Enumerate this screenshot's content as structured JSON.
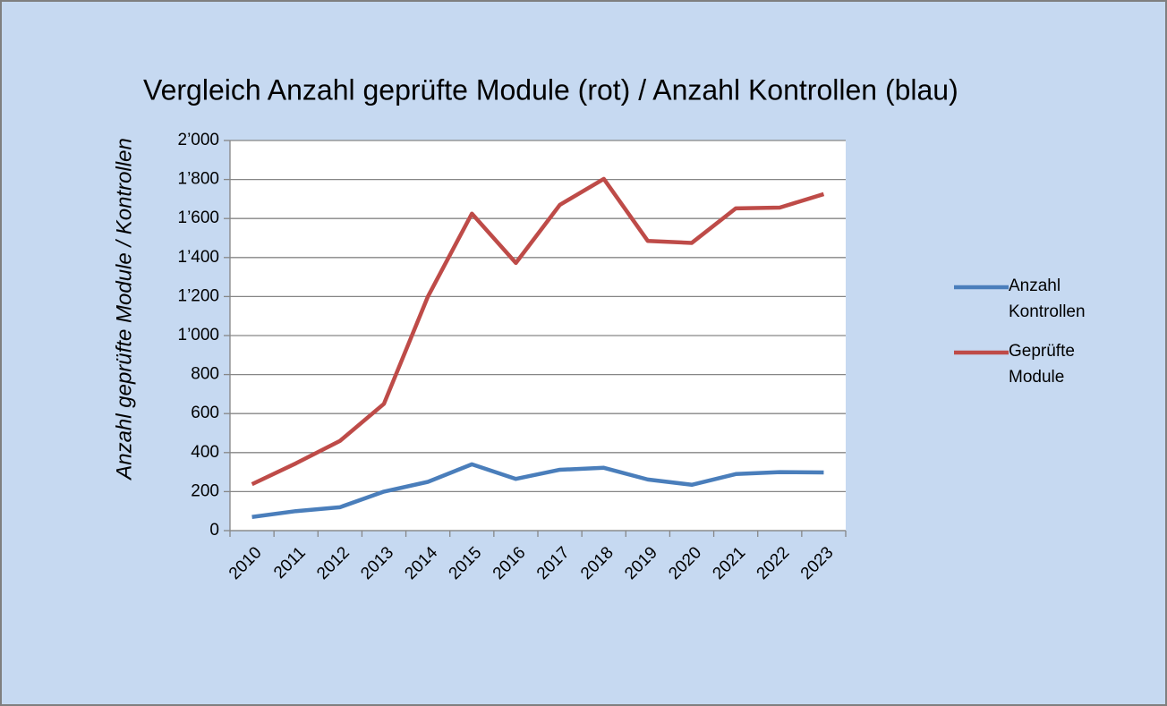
{
  "chart_data": {
    "type": "line",
    "title": "Vergleich Anzahl geprüfte Module (rot) / Anzahl Kontrollen (blau)",
    "y_label": "Anzahl geprüfte Module / Kontrollen",
    "categories": [
      "2010",
      "2011",
      "2012",
      "2013",
      "2014",
      "2015",
      "2016",
      "2017",
      "2018",
      "2019",
      "2020",
      "2021",
      "2022",
      "2023"
    ],
    "series": [
      {
        "name": "Anzahl Kontrollen",
        "color": "#4a7ebb",
        "values": [
          70,
          100,
          120,
          200,
          250,
          340,
          265,
          312,
          322,
          262,
          235,
          290,
          300,
          298
        ]
      },
      {
        "name": "Geprüfte Module",
        "color": "#be4b48",
        "values": [
          238,
          345,
          460,
          650,
          1200,
          1625,
          1372,
          1670,
          1803,
          1485,
          1475,
          1652,
          1656,
          1725
        ]
      }
    ],
    "ylim": [
      0,
      2000
    ],
    "yticks": [
      0,
      200,
      400,
      600,
      800,
      {
        "value": 1000,
        "label": "1’000"
      },
      {
        "value": 1200,
        "label": "1’200"
      },
      {
        "value": 1400,
        "label": "1’400"
      },
      {
        "value": 1600,
        "label": "1’600"
      },
      {
        "value": 1800,
        "label": "1’800"
      },
      {
        "value": 2000,
        "label": "2’000"
      }
    ],
    "grid": true,
    "legend": "right"
  }
}
